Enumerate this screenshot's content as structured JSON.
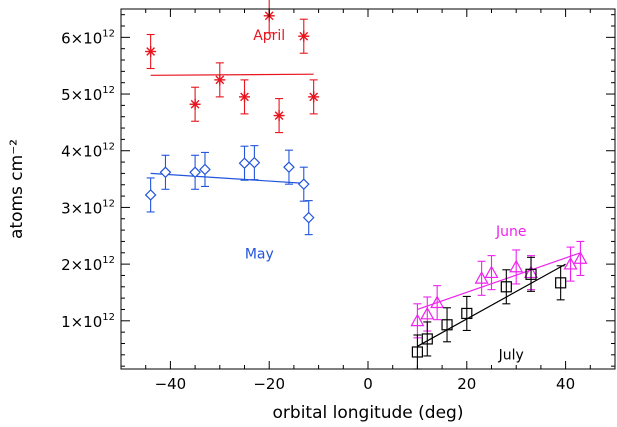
{
  "chart_data": {
    "type": "scatter",
    "title": "",
    "xlabel": "orbital longitude (deg)",
    "ylabel": "atoms cm⁻²",
    "xlim": [
      -50,
      50
    ],
    "ylim": [
      150000000000.0,
      6500000000000.0
    ],
    "x_ticks": [
      -40,
      -20,
      0,
      20,
      40
    ],
    "x_tick_labels": [
      "−40",
      "−20",
      "0",
      "20",
      "40"
    ],
    "y_ticks": [
      1000000000000.0,
      2000000000000.0,
      3000000000000.0,
      4000000000000.0,
      5000000000000.0,
      6000000000000.0
    ],
    "y_tick_mantissa": [
      "1",
      "2",
      "3",
      "4",
      "5",
      "6"
    ],
    "y_tick_base": "×10",
    "y_tick_exponent": "12",
    "grid": false,
    "series": [
      {
        "name": "April",
        "color": "#e8141e",
        "marker": "asterisk",
        "points": [
          {
            "x": -44,
            "y": 5750000000000.0,
            "err": 300000000000.0
          },
          {
            "x": -35,
            "y": 4820000000000.0,
            "err": 300000000000.0
          },
          {
            "x": -30,
            "y": 5250000000000.0,
            "err": 300000000000.0
          },
          {
            "x": -25,
            "y": 4950000000000.0,
            "err": 300000000000.0
          },
          {
            "x": -20,
            "y": 6380000000000.0,
            "err": 300000000000.0
          },
          {
            "x": -18,
            "y": 4620000000000.0,
            "err": 300000000000.0
          },
          {
            "x": -13,
            "y": 6020000000000.0,
            "err": 300000000000.0
          },
          {
            "x": -11,
            "y": 4950000000000.0,
            "err": 300000000000.0
          }
        ],
        "fit": {
          "x": [
            -44,
            -11
          ],
          "y": [
            5330000000000.0,
            5350000000000.0
          ]
        }
      },
      {
        "name": "May",
        "color": "#2255dd",
        "marker": "diamond",
        "points": [
          {
            "x": -44,
            "y": 3220000000000.0,
            "err": 300000000000.0
          },
          {
            "x": -41,
            "y": 3620000000000.0,
            "err": 300000000000.0
          },
          {
            "x": -35,
            "y": 3620000000000.0,
            "err": 300000000000.0
          },
          {
            "x": -33,
            "y": 3670000000000.0,
            "err": 300000000000.0
          },
          {
            "x": -25,
            "y": 3780000000000.0,
            "err": 300000000000.0
          },
          {
            "x": -23,
            "y": 3790000000000.0,
            "err": 300000000000.0
          },
          {
            "x": -16,
            "y": 3710000000000.0,
            "err": 300000000000.0
          },
          {
            "x": -13,
            "y": 3410000000000.0,
            "err": 300000000000.0
          },
          {
            "x": -12,
            "y": 2820000000000.0,
            "err": 300000000000.0
          }
        ],
        "fit": {
          "x": [
            -44,
            -12
          ],
          "y": [
            3600000000000.0,
            3420000000000.0
          ]
        }
      },
      {
        "name": "June",
        "color": "#ee22ee",
        "marker": "triangle",
        "points": [
          {
            "x": 10,
            "y": 1000000000000.0,
            "err": 300000000000.0
          },
          {
            "x": 12,
            "y": 1120000000000.0,
            "err": 300000000000.0
          },
          {
            "x": 14,
            "y": 1320000000000.0,
            "err": 300000000000.0
          },
          {
            "x": 23,
            "y": 1750000000000.0,
            "err": 300000000000.0
          },
          {
            "x": 25,
            "y": 1850000000000.0,
            "err": 300000000000.0
          },
          {
            "x": 30,
            "y": 1950000000000.0,
            "err": 300000000000.0
          },
          {
            "x": 33,
            "y": 1850000000000.0,
            "err": 300000000000.0
          },
          {
            "x": 41,
            "y": 2000000000000.0,
            "err": 300000000000.0
          },
          {
            "x": 43,
            "y": 2100000000000.0,
            "err": 300000000000.0
          }
        ],
        "fit": {
          "x": [
            10,
            43
          ],
          "y": [
            1200000000000.0,
            2200000000000.0
          ]
        }
      },
      {
        "name": "July",
        "color": "#000000",
        "marker": "square",
        "points": [
          {
            "x": 10,
            "y": 450000000000.0,
            "err": 300000000000.0
          },
          {
            "x": 12,
            "y": 680000000000.0,
            "err": 300000000000.0
          },
          {
            "x": 16,
            "y": 930000000000.0,
            "err": 300000000000.0
          },
          {
            "x": 20,
            "y": 1130000000000.0,
            "err": 300000000000.0
          },
          {
            "x": 28,
            "y": 1600000000000.0,
            "err": 300000000000.0
          },
          {
            "x": 33,
            "y": 1820000000000.0,
            "err": 300000000000.0
          },
          {
            "x": 39,
            "y": 1670000000000.0,
            "err": 300000000000.0
          }
        ],
        "fit": {
          "x": [
            10,
            40
          ],
          "y": [
            550000000000.0,
            2000000000000.0
          ]
        }
      }
    ],
    "annotations": [
      {
        "text": "April",
        "x": -20,
        "y": 5950000000000.0,
        "color": "#e8141e"
      },
      {
        "text": "May",
        "x": -22,
        "y": 2100000000000.0,
        "color": "#2255dd"
      },
      {
        "text": "June",
        "x": 29,
        "y": 2500000000000.0,
        "color": "#ee22ee"
      },
      {
        "text": "July",
        "x": 29,
        "y": 320000000000.0,
        "color": "#000000"
      }
    ]
  }
}
